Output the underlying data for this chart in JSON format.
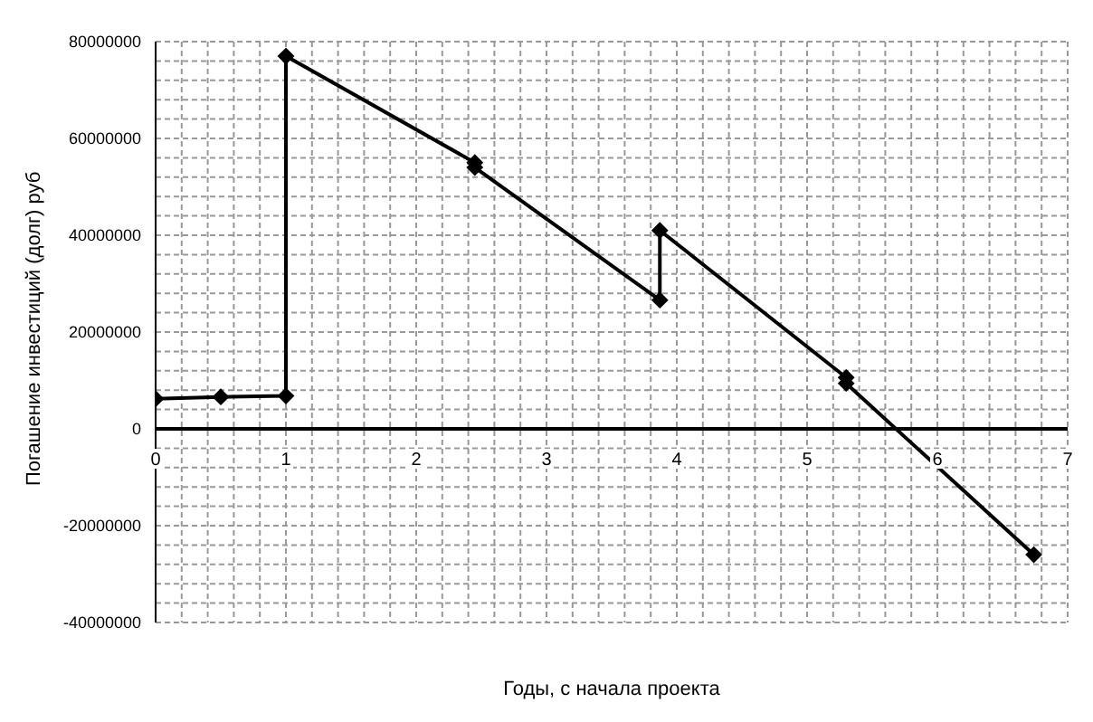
{
  "chart_data": {
    "type": "line",
    "xlabel": "Годы, с начала проекта",
    "ylabel": "Погашение инвестиций (долг) руб",
    "x": [
      0,
      0.5,
      1,
      1,
      2.45,
      2.45,
      3.87,
      3.87,
      5.3,
      5.3,
      6.74
    ],
    "series": [
      {
        "color": "#000000",
        "values": [
          6200000,
          6600000,
          6800000,
          77000000,
          55000000,
          54000000,
          26600000,
          41000000,
          10600000,
          9400000,
          -26000000
        ]
      }
    ],
    "xlim": [
      0,
      7
    ],
    "xticks": [
      0,
      {
        "value": 0.2,
        "label": null
      },
      {
        "value": 0.4,
        "label": null
      },
      {
        "value": 0.6,
        "label": null
      },
      {
        "value": 0.8,
        "label": null
      },
      1,
      {
        "value": 1.2,
        "label": null
      },
      {
        "value": 1.4,
        "label": null
      },
      {
        "value": 1.6,
        "label": null
      },
      {
        "value": 1.8,
        "label": null
      },
      2,
      {
        "value": 2.2,
        "label": null
      },
      {
        "value": 2.4,
        "label": null
      },
      {
        "value": 2.6,
        "label": null
      },
      {
        "value": 2.8,
        "label": null
      },
      3,
      {
        "value": 3.2,
        "label": null
      },
      {
        "value": 3.4,
        "label": null
      },
      {
        "value": 3.6,
        "label": null
      },
      {
        "value": 3.8,
        "label": null
      },
      4,
      {
        "value": 4.2,
        "label": null
      },
      {
        "value": 4.4,
        "label": null
      },
      {
        "value": 4.6,
        "label": null
      },
      {
        "value": 4.8,
        "label": null
      },
      5,
      {
        "value": 5.2,
        "label": null
      },
      {
        "value": 5.4,
        "label": null
      },
      {
        "value": 5.6,
        "label": null
      },
      {
        "value": 5.8,
        "label": null
      },
      6,
      {
        "value": 6.2,
        "label": null
      },
      {
        "value": 6.4,
        "label": null
      },
      {
        "value": 6.6,
        "label": null
      },
      {
        "value": 6.8,
        "label": null
      },
      7
    ],
    "ylim": [
      -40000000,
      80000000
    ],
    "yticks": [
      -40000000,
      {
        "value": -36000000,
        "label": null
      },
      {
        "value": -32000000,
        "label": null
      },
      {
        "value": -28000000,
        "label": null
      },
      {
        "value": -24000000,
        "label": null
      },
      -20000000,
      {
        "value": -16000000,
        "label": null
      },
      {
        "value": -12000000,
        "label": null
      },
      {
        "value": -8000000,
        "label": null
      },
      {
        "value": -4000000,
        "label": null
      },
      0,
      {
        "value": 4000000,
        "label": null
      },
      {
        "value": 8000000,
        "label": null
      },
      {
        "value": 12000000,
        "label": null
      },
      {
        "value": 16000000,
        "label": null
      },
      20000000,
      {
        "value": 24000000,
        "label": null
      },
      {
        "value": 28000000,
        "label": null
      },
      {
        "value": 32000000,
        "label": null
      },
      {
        "value": 36000000,
        "label": null
      },
      40000000,
      {
        "value": 44000000,
        "label": null
      },
      {
        "value": 48000000,
        "label": null
      },
      {
        "value": 52000000,
        "label": null
      },
      {
        "value": 56000000,
        "label": null
      },
      60000000,
      {
        "value": 64000000,
        "label": null
      },
      {
        "value": 68000000,
        "label": null
      },
      {
        "value": 72000000,
        "label": null
      },
      {
        "value": 76000000,
        "label": null
      },
      80000000
    ],
    "grid": true,
    "marker": "diamond",
    "line_style": "solid",
    "legend": false
  }
}
